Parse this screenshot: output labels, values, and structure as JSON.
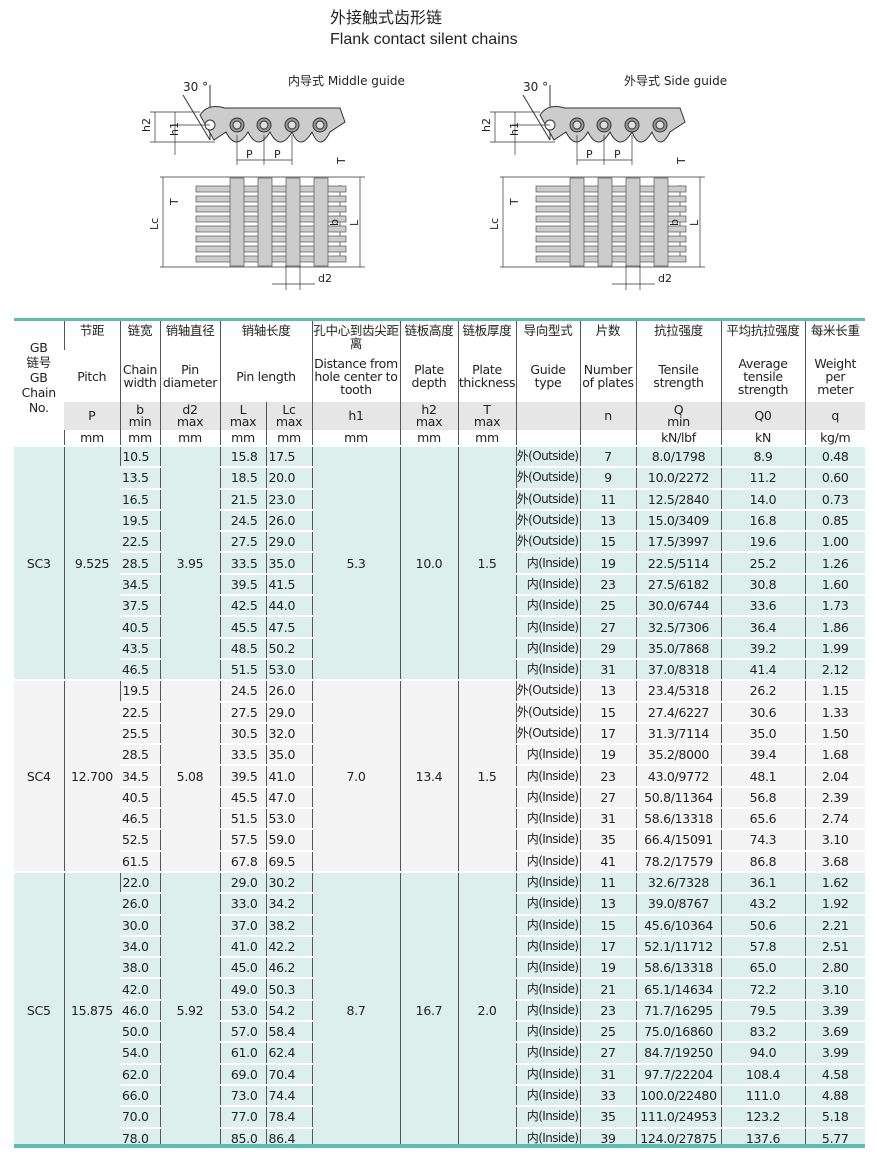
{
  "title": {
    "cn": "外接触式齿形链",
    "en": "Flank contact silent chains"
  },
  "diagrams": {
    "middle": {
      "title": "内导式 Middle guide"
    },
    "side": {
      "title": "外导式 Side guide"
    },
    "labels": {
      "angle": "30 °",
      "h2": "h2",
      "h1": "h1",
      "P": "P",
      "T": "T",
      "Lc": "Lc",
      "b": "b",
      "L": "L",
      "d2": "d2"
    }
  },
  "header": {
    "chain_no": [
      "GB",
      "链号",
      "GB",
      "Chain",
      "No."
    ],
    "cols": [
      {
        "cn": "节距",
        "en": "Pitch",
        "sym": "P",
        "unit": "mm"
      },
      {
        "cn": "链宽",
        "en": "Chain width",
        "sym": "b",
        "sym2": "min",
        "unit": "mm"
      },
      {
        "cn": "销轴直径",
        "en": "Pin diameter",
        "sym": "d2",
        "sym2": "max",
        "unit": "mm"
      },
      {
        "cn": "销轴长度",
        "en": "Pin length",
        "subs": [
          {
            "sym": "L",
            "sym2": "max",
            "unit": "mm"
          },
          {
            "sym": "Lc",
            "sym2": "max",
            "unit": "mm"
          }
        ]
      },
      {
        "cn": "孔中心到齿尖距离",
        "en": "Distance from hole center to tooth",
        "sym": "h1",
        "unit": "mm"
      },
      {
        "cn": "链板高度",
        "en": "Plate depth",
        "sym": "h2",
        "sym2": "max",
        "unit": "mm"
      },
      {
        "cn": "链板厚度",
        "en": "Plate thickness",
        "sym": "T",
        "sym2": "max",
        "unit": "mm"
      },
      {
        "cn": "导向型式",
        "en": "Guide type",
        "sym": "",
        "unit": ""
      },
      {
        "cn": "片数",
        "en": "Number of plates",
        "sym": "n",
        "unit": ""
      },
      {
        "cn": "抗拉强度",
        "en": "Tensile strength",
        "sym": "Q",
        "sym2": "min",
        "unit": "kN/lbf"
      },
      {
        "cn": "平均抗拉强度",
        "en": "Average tensile strength",
        "sym": "Q0",
        "unit": "kN"
      },
      {
        "cn": "每米长重",
        "en": "Weight per meter",
        "sym": "q",
        "unit": "kg/m"
      }
    ]
  },
  "groups": [
    {
      "chain_no": "SC3",
      "pitch": "9.525",
      "d2": "3.95",
      "h1": "5.3",
      "h2": "10.0",
      "T": "1.5",
      "rows": [
        [
          "10.5",
          "15.8",
          "17.5",
          "外(Outside)",
          "7",
          "8.0/1798",
          "8.9",
          "0.48"
        ],
        [
          "13.5",
          "18.5",
          "20.0",
          "外(Outside)",
          "9",
          "10.0/2272",
          "11.2",
          "0.60"
        ],
        [
          "16.5",
          "21.5",
          "23.0",
          "外(Outside)",
          "11",
          "12.5/2840",
          "14.0",
          "0.73"
        ],
        [
          "19.5",
          "24.5",
          "26.0",
          "外(Outside)",
          "13",
          "15.0/3409",
          "16.8",
          "0.85"
        ],
        [
          "22.5",
          "27.5",
          "29.0",
          "外(Outside)",
          "15",
          "17.5/3997",
          "19.6",
          "1.00"
        ],
        [
          "28.5",
          "33.5",
          "35.0",
          "内(Inside)",
          "19",
          "22.5/5114",
          "25.2",
          "1.26"
        ],
        [
          "34.5",
          "39.5",
          "41.5",
          "内(Inside)",
          "23",
          "27.5/6182",
          "30.8",
          "1.60"
        ],
        [
          "37.5",
          "42.5",
          "44.0",
          "内(Inside)",
          "25",
          "30.0/6744",
          "33.6",
          "1.73"
        ],
        [
          "40.5",
          "45.5",
          "47.5",
          "内(Inside)",
          "27",
          "32.5/7306",
          "36.4",
          "1.86"
        ],
        [
          "43.5",
          "48.5",
          "50.2",
          "内(Inside)",
          "29",
          "35.0/7868",
          "39.2",
          "1.99"
        ],
        [
          "46.5",
          "51.5",
          "53.0",
          "内(Inside)",
          "31",
          "37.0/8318",
          "41.4",
          "2.12"
        ]
      ]
    },
    {
      "chain_no": "SC4",
      "pitch": "12.700",
      "d2": "5.08",
      "h1": "7.0",
      "h2": "13.4",
      "T": "1.5",
      "rows": [
        [
          "19.5",
          "24.5",
          "26.0",
          "外(Outside)",
          "13",
          "23.4/5318",
          "26.2",
          "1.15"
        ],
        [
          "22.5",
          "27.5",
          "29.0",
          "外(Outside)",
          "15",
          "27.4/6227",
          "30.6",
          "1.33"
        ],
        [
          "25.5",
          "30.5",
          "32.0",
          "外(Outside)",
          "17",
          "31.3/7114",
          "35.0",
          "1.50"
        ],
        [
          "28.5",
          "33.5",
          "35.0",
          "内(Inside)",
          "19",
          "35.2/8000",
          "39.4",
          "1.68"
        ],
        [
          "34.5",
          "39.5",
          "41.0",
          "内(Inside)",
          "23",
          "43.0/9772",
          "48.1",
          "2.04"
        ],
        [
          "40.5",
          "45.5",
          "47.0",
          "内(Inside)",
          "27",
          "50.8/11364",
          "56.8",
          "2.39"
        ],
        [
          "46.5",
          "51.5",
          "53.0",
          "内(Inside)",
          "31",
          "58.6/13318",
          "65.6",
          "2.74"
        ],
        [
          "52.5",
          "57.5",
          "59.0",
          "内(Inside)",
          "35",
          "66.4/15091",
          "74.3",
          "3.10"
        ],
        [
          "61.5",
          "67.8",
          "69.5",
          "内(Inside)",
          "41",
          "78.2/17579",
          "86.8",
          "3.68"
        ]
      ]
    },
    {
      "chain_no": "SC5",
      "pitch": "15.875",
      "d2": "5.92",
      "h1": "8.7",
      "h2": "16.7",
      "T": "2.0",
      "rows": [
        [
          "22.0",
          "29.0",
          "30.2",
          "内(Inside)",
          "11",
          "32.6/7328",
          "36.1",
          "1.62"
        ],
        [
          "26.0",
          "33.0",
          "34.2",
          "内(Inside)",
          "13",
          "39.0/8767",
          "43.2",
          "1.92"
        ],
        [
          "30.0",
          "37.0",
          "38.2",
          "内(Inside)",
          "15",
          "45.6/10364",
          "50.6",
          "2.21"
        ],
        [
          "34.0",
          "41.0",
          "42.2",
          "内(Inside)",
          "17",
          "52.1/11712",
          "57.8",
          "2.51"
        ],
        [
          "38.0",
          "45.0",
          "46.2",
          "内(Inside)",
          "19",
          "58.6/13318",
          "65.0",
          "2.80"
        ],
        [
          "42.0",
          "49.0",
          "50.3",
          "内(Inside)",
          "21",
          "65.1/14634",
          "72.2",
          "3.10"
        ],
        [
          "46.0",
          "53.0",
          "54.2",
          "内(Inside)",
          "23",
          "71.7/16295",
          "79.5",
          "3.39"
        ],
        [
          "50.0",
          "57.0",
          "58.4",
          "内(Inside)",
          "25",
          "75.0/16860",
          "83.2",
          "3.69"
        ],
        [
          "54.0",
          "61.0",
          "62.4",
          "内(Inside)",
          "27",
          "84.7/19250",
          "94.0",
          "3.99"
        ],
        [
          "62.0",
          "69.0",
          "70.4",
          "内(Inside)",
          "31",
          "97.7/22204",
          "108.4",
          "4.58"
        ],
        [
          "66.0",
          "73.0",
          "74.4",
          "内(Inside)",
          "33",
          "100.0/22480",
          "111.0",
          "4.88"
        ],
        [
          "70.0",
          "77.0",
          "78.4",
          "内(Inside)",
          "35",
          "111.0/24953",
          "123.2",
          "5.18"
        ],
        [
          "78.0",
          "85.0",
          "86.4",
          "内(Inside)",
          "39",
          "124.0/27875",
          "137.6",
          "5.77"
        ]
      ]
    }
  ],
  "colors": {
    "accent": "#5dbdb0",
    "group_teal": "#dcefec",
    "group_grey": "#f4f4f4",
    "header_grey": "#e6e6e6"
  }
}
